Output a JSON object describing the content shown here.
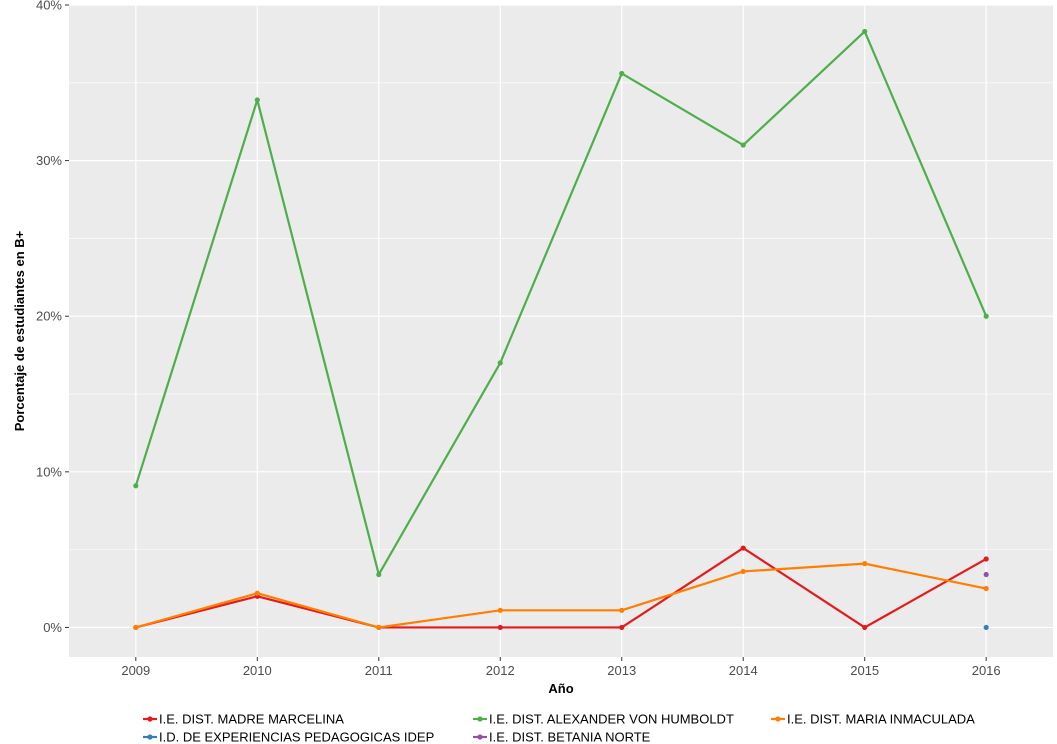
{
  "chart_data": {
    "type": "line",
    "title": "",
    "xlabel": "Año",
    "ylabel": "Porcentaje de estudiantes en B+",
    "x": [
      2009,
      2010,
      2011,
      2012,
      2013,
      2014,
      2015,
      2016
    ],
    "xlim": [
      2008.45,
      2016.55
    ],
    "ylim": [
      -0.019,
      0.4
    ],
    "y_ticks": [
      0,
      0.1,
      0.2,
      0.3,
      0.4
    ],
    "y_tick_labels": [
      "0%",
      "10%",
      "20%",
      "30%",
      "40%"
    ],
    "x_tick_labels": [
      "2009",
      "2010",
      "2011",
      "2012",
      "2013",
      "2014",
      "2015",
      "2016"
    ],
    "grid": true,
    "legend_position": "bottom",
    "series": [
      {
        "name": "I.E. DIST. MADRE MARCELINA",
        "color": "#e41a1c",
        "x": [
          2009,
          2010,
          2011,
          2012,
          2013,
          2014,
          2015,
          2016
        ],
        "values": [
          0.0,
          0.02,
          0.0,
          0.0,
          0.0,
          0.051,
          0.0,
          0.044
        ]
      },
      {
        "name": "I.E. DIST. ALEXANDER VON HUMBOLDT",
        "color": "#4daf4a",
        "x": [
          2009,
          2010,
          2011,
          2012,
          2013,
          2014,
          2015,
          2016
        ],
        "values": [
          0.091,
          0.339,
          0.034,
          0.17,
          0.356,
          0.31,
          0.383,
          0.2
        ]
      },
      {
        "name": "I.E. DIST. MARIA INMACULADA",
        "color": "#ff7f00",
        "x": [
          2009,
          2010,
          2011,
          2012,
          2013,
          2014,
          2015,
          2016
        ],
        "values": [
          0.0,
          0.022,
          0.0,
          0.011,
          0.011,
          0.036,
          0.041,
          0.025
        ]
      },
      {
        "name": "I.D. DE EXPERIENCIAS PEDAGOGICAS IDEP",
        "color": "#377eb8",
        "x": [
          2016
        ],
        "values": [
          0.0
        ]
      },
      {
        "name": "I.E. DIST. BETANIA NORTE",
        "color": "#984ea3",
        "x": [
          2016
        ],
        "values": [
          0.034
        ]
      }
    ]
  }
}
